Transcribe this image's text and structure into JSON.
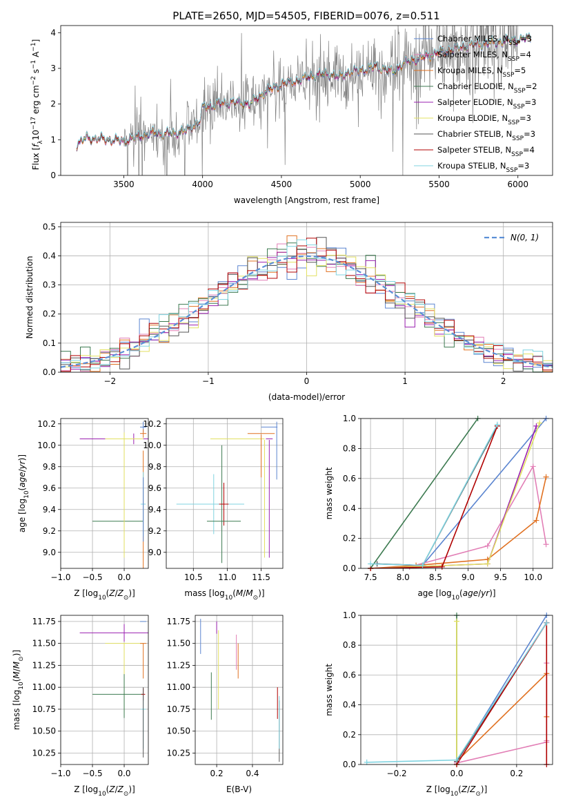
{
  "figure": {
    "title": "PLATE=2650, MJD=54505, FIBERID=0076, z=0.511",
    "colors": {
      "Chabrier MILES": "#5b85d0",
      "Salpeter MILES": "#e27fb6",
      "Kroupa MILES": "#e07020",
      "Chabrier ELODIE": "#3c7a50",
      "Salpeter ELODIE": "#9a1fb0",
      "Kroupa ELODIE": "#e2e060",
      "Chabrier STELIB": "#555555",
      "Salpeter STELIB": "#b00000",
      "Kroupa STELIB": "#7fd3e0",
      "observed": "#7f7f7f",
      "gaussian": "#5b8fd6"
    },
    "legend_entries": [
      {
        "key": "Chabrier MILES",
        "label": "Chabrier MILES, N",
        "sub": "SSP",
        "suffix": "=3"
      },
      {
        "key": "Salpeter MILES",
        "label": "Salpeter MILES, N",
        "sub": "SSP",
        "suffix": "=4"
      },
      {
        "key": "Kroupa MILES",
        "label": "Kroupa MILES, N",
        "sub": "SSP",
        "suffix": "=5"
      },
      {
        "key": "Chabrier ELODIE",
        "label": "Chabrier ELODIE, N",
        "sub": "SSP",
        "suffix": "=2"
      },
      {
        "key": "Salpeter ELODIE",
        "label": "Salpeter ELODIE, N",
        "sub": "SSP",
        "suffix": "=3"
      },
      {
        "key": "Kroupa ELODIE",
        "label": "Kroupa ELODIE, N",
        "sub": "SSP",
        "suffix": "=3"
      },
      {
        "key": "Chabrier STELIB",
        "label": "Chabrier STELIB, N",
        "sub": "SSP",
        "suffix": "=3"
      },
      {
        "key": "Salpeter STELIB",
        "label": "Salpeter STELIB, N",
        "sub": "SSP",
        "suffix": "=4"
      },
      {
        "key": "Kroupa STELIB",
        "label": "Kroupa STELIB, N",
        "sub": "SSP",
        "suffix": "=3"
      }
    ],
    "model_order": [
      "Chabrier MILES",
      "Salpeter MILES",
      "Kroupa MILES",
      "Chabrier ELODIE",
      "Salpeter ELODIE",
      "Kroupa ELODIE",
      "Chabrier STELIB",
      "Salpeter STELIB",
      "Kroupa STELIB"
    ]
  },
  "chart_data": [
    {
      "id": "spectrum",
      "type": "line",
      "xlabel": "wavelength [Angstrom, rest frame]",
      "ylabel_parts": [
        "Flux [",
        "f",
        "λ",
        "10",
        "−17",
        " erg cm",
        "−2",
        " s",
        "−1",
        " A",
        "−1",
        "]"
      ],
      "xlim": [
        3100,
        6220
      ],
      "ylim": [
        0,
        4.2
      ],
      "xticks": [
        3500,
        4000,
        4500,
        5000,
        5500,
        6000
      ],
      "yticks": [
        0,
        1,
        2,
        3,
        4
      ],
      "grid": false,
      "legend": "upper right",
      "continuum_anchors": [
        [
          3200,
          0.85
        ],
        [
          3260,
          1.05
        ],
        [
          3400,
          1.0
        ],
        [
          3500,
          0.96
        ],
        [
          3600,
          1.1
        ],
        [
          3700,
          1.2
        ],
        [
          3760,
          1.15
        ],
        [
          3900,
          1.25
        ],
        [
          3980,
          1.5
        ],
        [
          4000,
          1.9
        ],
        [
          4100,
          2.0
        ],
        [
          4200,
          2.05
        ],
        [
          4300,
          2.0
        ],
        [
          4400,
          2.35
        ],
        [
          4500,
          2.55
        ],
        [
          4600,
          2.65
        ],
        [
          4700,
          2.8
        ],
        [
          4800,
          2.85
        ],
        [
          4860,
          2.75
        ],
        [
          4900,
          2.85
        ],
        [
          5000,
          2.95
        ],
        [
          5100,
          3.05
        ],
        [
          5200,
          2.9
        ],
        [
          5300,
          3.2
        ],
        [
          5400,
          3.3
        ],
        [
          5500,
          3.45
        ],
        [
          5600,
          3.55
        ],
        [
          5700,
          3.65
        ],
        [
          5800,
          3.7
        ],
        [
          5900,
          3.75
        ],
        [
          6000,
          3.8
        ],
        [
          6080,
          3.85
        ]
      ],
      "observed_noise_start": 3500,
      "observed_end": 6000
    },
    {
      "id": "residuals",
      "type": "histogram",
      "xlabel": "(data-model)/error",
      "ylabel": "Normed distribution",
      "xlim": [
        -2.5,
        2.5
      ],
      "ylim": [
        0,
        0.515
      ],
      "xticks": [
        -2,
        -1,
        0,
        1,
        2
      ],
      "yticks": [
        0.0,
        0.1,
        0.2,
        0.3,
        0.4,
        0.5
      ],
      "grid": true,
      "legend": "upper right",
      "legend_label": "N(0, 1)",
      "bin_width": 0.1,
      "gaussian": {
        "mu": 0,
        "sigma": 1
      }
    },
    {
      "id": "age_vs_Z",
      "type": "errorbar",
      "xlabel": "Z [log10(Z/Z⊙)]",
      "ylabel": "age  [log10(age/yr)]",
      "xlim": [
        -1.0,
        0.38
      ],
      "ylim": [
        8.85,
        10.25
      ],
      "xticks": [
        -1.0,
        -0.5,
        0.0
      ],
      "yticks": [
        9.0,
        9.2,
        9.4,
        9.6,
        9.8,
        10.0,
        10.2
      ],
      "grid": true,
      "points": [
        {
          "model": "Salpeter ELODIE",
          "x": 0.15,
          "xerr": 0.85,
          "y": 10.06,
          "yerr": 0.05
        },
        {
          "model": "Kroupa ELODIE",
          "x": 0.0,
          "xerr": 0.3,
          "y": 10.06,
          "yerr": 0.06
        },
        {
          "model": "Chabrier ELODIE",
          "x": -0.1,
          "xerr": 0.4,
          "y": 9.29,
          "yerr": 0.0
        },
        {
          "model": "Kroupa ELODIE",
          "x": 0.0,
          "xerr": 0.0,
          "y": 9.5,
          "yerr": 0.55
        },
        {
          "model": "Chabrier MILES",
          "x": 0.3,
          "xerr": 0.05,
          "y": 10.17,
          "yerr": 0.05
        },
        {
          "model": "Kroupa MILES",
          "x": 0.3,
          "xerr": 0.05,
          "y": 10.11,
          "yerr": 0.04
        },
        {
          "model": "Kroupa MILES",
          "x": 0.3,
          "xerr": 0.0,
          "y": 9.4,
          "yerr": 0.55
        },
        {
          "model": "Kroupa STELIB",
          "x": 0.3,
          "xerr": 0.04,
          "y": 9.45,
          "yerr": 0.3
        },
        {
          "model": "Chabrier MILES",
          "x": 0.3,
          "xerr": 0.0,
          "y": 9.4,
          "yerr": 0.3
        }
      ]
    },
    {
      "id": "age_vs_mass",
      "type": "errorbar",
      "xlabel": "mass [log10(M/M⊙)]",
      "ylabel": "",
      "xlim": [
        10.1,
        11.82
      ],
      "ylim": [
        8.85,
        10.25
      ],
      "xticks": [
        10.5,
        11.0,
        11.5
      ],
      "yticks": [
        9.0,
        9.2,
        9.4,
        9.6,
        9.8,
        10.0,
        10.2
      ],
      "grid": true,
      "points": [
        {
          "model": "Kroupa ELODIE",
          "x": 11.15,
          "xerr": 0.4,
          "y": 10.06,
          "yerr": 0.0
        },
        {
          "model": "Salpeter ELODIE",
          "x": 11.62,
          "xerr": 0.05,
          "y": 10.06,
          "yerr": 0.0
        },
        {
          "model": "Chabrier MILES",
          "x": 11.62,
          "xerr": 0.12,
          "y": 10.17,
          "yerr": 0.0
        },
        {
          "model": "Kroupa MILES",
          "x": 11.5,
          "xerr": 0.2,
          "y": 10.11,
          "yerr": 0.0
        },
        {
          "model": "Kroupa MILES",
          "x": 11.5,
          "xerr": 0.0,
          "y": 9.9,
          "yerr": 0.2
        },
        {
          "model": "Kroupa ELODIE",
          "x": 11.55,
          "xerr": 0.0,
          "y": 9.5,
          "yerr": 0.55
        },
        {
          "model": "Salpeter ELODIE",
          "x": 11.62,
          "xerr": 0.0,
          "y": 9.5,
          "yerr": 0.55
        },
        {
          "model": "Chabrier MILES",
          "x": 11.73,
          "xerr": 0.0,
          "y": 9.95,
          "yerr": 0.27
        },
        {
          "model": "Kroupa STELIB",
          "x": 10.75,
          "xerr": 0.5,
          "y": 9.45,
          "yerr": 0.0
        },
        {
          "model": "Kroupa STELIB",
          "x": 10.8,
          "xerr": 0.0,
          "y": 9.45,
          "yerr": 0.28
        },
        {
          "model": "Chabrier ELODIE",
          "x": 10.92,
          "xerr": 0.0,
          "y": 9.45,
          "yerr": 0.55
        },
        {
          "model": "Salpeter STELIB",
          "x": 10.95,
          "xerr": 0.0,
          "y": 9.45,
          "yerr": 0.2
        },
        {
          "model": "Chabrier ELODIE",
          "x": 10.95,
          "xerr": 0.25,
          "y": 9.29,
          "yerr": 0.0
        },
        {
          "model": "Salpeter STELIB",
          "x": 10.95,
          "xerr": 0.07,
          "y": 9.45,
          "yerr": 0.0
        }
      ]
    },
    {
      "id": "weight_vs_age",
      "type": "line",
      "xlabel": "age  [log10(age/yr)]",
      "ylabel": "mass weight",
      "xlim": [
        7.35,
        10.3
      ],
      "ylim": [
        0.0,
        1.0
      ],
      "xticks": [
        7.5,
        8.0,
        8.5,
        9.0,
        9.5,
        10.0
      ],
      "yticks": [
        0.0,
        0.2,
        0.4,
        0.6,
        0.8,
        1.0
      ],
      "grid": true,
      "series": [
        {
          "model": "Chabrier MILES",
          "x": [
            7.6,
            8.3,
            10.2
          ],
          "y": [
            0.03,
            0.02,
            1.0
          ]
        },
        {
          "model": "Salpeter MILES",
          "x": [
            7.5,
            8.1,
            9.3,
            10.0,
            10.2
          ],
          "y": [
            0.0,
            0.01,
            0.15,
            0.68,
            0.16
          ]
        },
        {
          "model": "Kroupa MILES",
          "x": [
            7.5,
            8.2,
            9.3,
            10.05,
            10.2
          ],
          "y": [
            0.0,
            0.02,
            0.06,
            0.32,
            0.61
          ]
        },
        {
          "model": "Chabrier ELODIE",
          "x": [
            7.5,
            9.15
          ],
          "y": [
            0.0,
            1.0
          ]
        },
        {
          "model": "Salpeter ELODIE",
          "x": [
            7.5,
            9.3,
            10.05
          ],
          "y": [
            0.0,
            0.03,
            0.95
          ]
        },
        {
          "model": "Kroupa ELODIE",
          "x": [
            7.5,
            9.3,
            10.1
          ],
          "y": [
            0.0,
            0.03,
            0.97
          ]
        },
        {
          "model": "Chabrier STELIB",
          "x": [
            7.6,
            8.3,
            9.45
          ],
          "y": [
            0.03,
            0.02,
            0.95
          ]
        },
        {
          "model": "Salpeter STELIB",
          "x": [
            7.5,
            8.6,
            9.45
          ],
          "y": [
            0.0,
            0.01,
            0.95
          ]
        },
        {
          "model": "Kroupa STELIB",
          "x": [
            7.5,
            8.3,
            9.45
          ],
          "y": [
            0.03,
            0.02,
            0.96
          ]
        }
      ]
    },
    {
      "id": "mass_vs_Z",
      "type": "errorbar",
      "xlabel": "Z [log10(Z/Z⊙)]",
      "ylabel": "mass [log10(M/M⊙)]",
      "xlim": [
        -1.0,
        0.38
      ],
      "ylim": [
        10.12,
        11.82
      ],
      "xticks": [
        -1.0,
        -0.5,
        0.0
      ],
      "yticks": [
        10.25,
        10.5,
        10.75,
        11.0,
        11.25,
        11.5,
        11.75
      ],
      "grid": true,
      "points": [
        {
          "model": "Salpeter ELODIE",
          "x": 0.15,
          "xerr": 0.85,
          "y": 11.62,
          "yerr": 0.0
        },
        {
          "model": "Salpeter ELODIE",
          "x": 0.0,
          "xerr": 0.0,
          "y": 11.62,
          "yerr": 0.1
        },
        {
          "model": "Kroupa ELODIE",
          "x": 0.0,
          "xerr": 0.3,
          "y": 11.5,
          "yerr": 0.0
        },
        {
          "model": "Kroupa ELODIE",
          "x": 0.0,
          "xerr": 0.0,
          "y": 11.1,
          "yerr": 0.4
        },
        {
          "model": "Chabrier MILES",
          "x": 0.3,
          "xerr": 0.05,
          "y": 11.75,
          "yerr": 0.0
        },
        {
          "model": "Kroupa MILES",
          "x": 0.3,
          "xerr": 0.05,
          "y": 11.5,
          "yerr": 0.0
        },
        {
          "model": "Kroupa MILES",
          "x": 0.3,
          "xerr": 0.0,
          "y": 11.3,
          "yerr": 0.2
        },
        {
          "model": "Chabrier ELODIE",
          "x": -0.1,
          "xerr": 0.4,
          "y": 10.92,
          "yerr": 0.0
        },
        {
          "model": "Chabrier ELODIE",
          "x": 0.0,
          "xerr": 0.0,
          "y": 10.9,
          "yerr": 0.25
        },
        {
          "model": "Salpeter STELIB",
          "x": 0.3,
          "xerr": 0.03,
          "y": 10.92,
          "yerr": 0.07
        },
        {
          "model": "Kroupa STELIB",
          "x": 0.3,
          "xerr": 0.04,
          "y": 10.75,
          "yerr": 0.0
        },
        {
          "model": "Kroupa STELIB",
          "x": 0.3,
          "xerr": 0.0,
          "y": 10.6,
          "yerr": 0.3
        },
        {
          "model": "Chabrier STELIB",
          "x": 0.3,
          "xerr": 0.0,
          "y": 10.6,
          "yerr": 0.4
        }
      ]
    },
    {
      "id": "mass_vs_ebv",
      "type": "errorbar",
      "xlabel": "E(B-V)",
      "ylabel": "",
      "xlim": [
        0.08,
        0.57
      ],
      "ylim": [
        10.12,
        11.82
      ],
      "xticks": [
        0.2,
        0.4
      ],
      "yticks": [
        10.25,
        10.5,
        10.75,
        11.0,
        11.25,
        11.5,
        11.75
      ],
      "grid": true,
      "points": [
        {
          "model": "Chabrier MILES",
          "x": 0.11,
          "xerr": 0.0,
          "y": 11.58,
          "yerr": 0.2
        },
        {
          "model": "Salpeter ELODIE",
          "x": 0.2,
          "xerr": 0.0,
          "y": 11.68,
          "yerr": 0.07
        },
        {
          "model": "Kroupa ELODIE",
          "x": 0.21,
          "xerr": 0.0,
          "y": 11.2,
          "yerr": 0.45
        },
        {
          "model": "Chabrier ELODIE",
          "x": 0.17,
          "xerr": 0.0,
          "y": 10.9,
          "yerr": 0.27
        },
        {
          "model": "Salpeter MILES",
          "x": 0.31,
          "xerr": 0.0,
          "y": 11.4,
          "yerr": 0.2
        },
        {
          "model": "Kroupa MILES",
          "x": 0.32,
          "xerr": 0.0,
          "y": 11.3,
          "yerr": 0.2
        },
        {
          "model": "Salpeter STELIB",
          "x": 0.54,
          "xerr": 0.0,
          "y": 10.82,
          "yerr": 0.18
        },
        {
          "model": "Chabrier STELIB",
          "x": 0.55,
          "xerr": 0.0,
          "y": 10.5,
          "yerr": 0.35
        },
        {
          "model": "Kroupa STELIB",
          "x": 0.55,
          "xerr": 0.0,
          "y": 10.6,
          "yerr": 0.3
        }
      ]
    },
    {
      "id": "weight_vs_Z",
      "type": "line",
      "xlabel": "Z [log10(Z/Z⊙)]",
      "ylabel": "mass weight",
      "xlim": [
        -0.32,
        0.32
      ],
      "ylim": [
        0.0,
        1.0
      ],
      "xticks": [
        -0.2,
        0.0,
        0.2
      ],
      "yticks": [
        0.0,
        0.2,
        0.4,
        0.6,
        0.8,
        1.0
      ],
      "grid": true,
      "series": [
        {
          "model": "Chabrier MILES",
          "x": [
            0.0,
            0.3
          ],
          "y": [
            0.02,
            1.0
          ]
        },
        {
          "model": "Salpeter MILES",
          "x": [
            0.0,
            0.3,
            0.3,
            0.3
          ],
          "y": [
            0.01,
            0.15,
            0.68,
            0.16
          ]
        },
        {
          "model": "Kroupa MILES",
          "x": [
            0.0,
            0.3,
            0.3
          ],
          "y": [
            0.02,
            0.61,
            0.32
          ]
        },
        {
          "model": "Chabrier ELODIE",
          "x": [
            0.0,
            0.0
          ],
          "y": [
            0.0,
            1.0
          ]
        },
        {
          "model": "Salpeter ELODIE",
          "x": [
            0.0,
            0.3
          ],
          "y": [
            0.02,
            0.95
          ]
        },
        {
          "model": "Kroupa ELODIE",
          "x": [
            0.0,
            0.0
          ],
          "y": [
            0.0,
            0.96
          ]
        },
        {
          "model": "Chabrier STELIB",
          "x": [
            0.0,
            0.3
          ],
          "y": [
            0.02,
            0.95
          ]
        },
        {
          "model": "Salpeter STELIB",
          "x": [
            0.0,
            0.3,
            0.3
          ],
          "y": [
            0.0,
            0.95,
            0.0
          ]
        },
        {
          "model": "Kroupa STELIB",
          "x": [
            -0.3,
            0.0,
            0.3
          ],
          "y": [
            0.015,
            0.03,
            0.95
          ]
        }
      ]
    }
  ]
}
